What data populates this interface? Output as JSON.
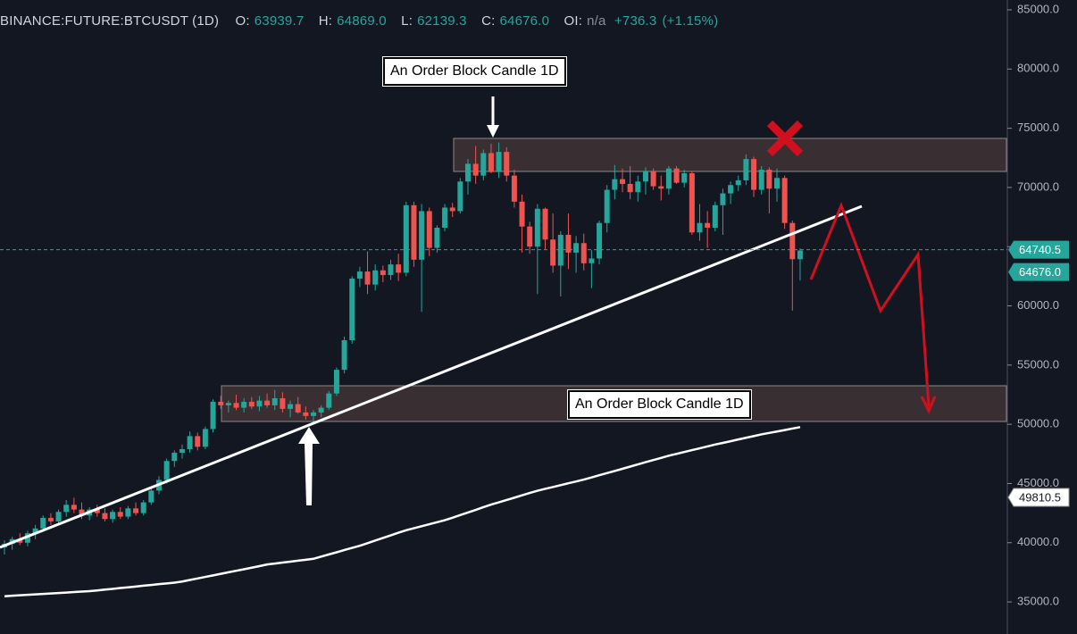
{
  "chart_data": {
    "type": "candlestick",
    "header": {
      "symbol": "BINANCE:FUTURE:BTCUSDT (1D)",
      "o_label": "O:",
      "o": "63939.7",
      "h_label": "H:",
      "h": "64869.0",
      "l_label": "L:",
      "l": "62139.3",
      "c_label": "C:",
      "c": "64676.0",
      "oi_label": "OI:",
      "oi": "n/a",
      "change": "+736.3",
      "change_pct": "(+1.15%)"
    },
    "annotations": [
      "An Order Block Candle 1D",
      "An Order Block Candle 1D"
    ],
    "up_color": "#26a69a",
    "down_color": "#ef5350",
    "open": [
      39600,
      39900,
      40300,
      40000,
      40800,
      41200,
      42100,
      41800,
      42600,
      43200,
      42800,
      42300,
      42800,
      42500,
      42000,
      42600,
      42200,
      42900,
      42500,
      43400,
      44400,
      45300,
      46900,
      47600,
      47900,
      49000,
      48100,
      49600,
      51900,
      51600,
      51800,
      51400,
      51900,
      51500,
      52000,
      51600,
      52200,
      51300,
      51700,
      51000,
      50700,
      51000,
      51400,
      52600,
      54600,
      57100,
      62300,
      62900,
      61800,
      63000,
      62600,
      63500,
      62800,
      68500,
      63900,
      68000,
      64900,
      66600,
      68300,
      68000,
      70500,
      72000,
      71000,
      72900,
      71300,
      73000,
      71000,
      68800,
      66700,
      65000,
      68200,
      65600,
      63400,
      66000,
      64500,
      65300,
      63600,
      64000,
      67000,
      69800,
      70700,
      70300,
      69600,
      70500,
      71400,
      70100,
      69900,
      71600,
      70400,
      71200,
      66200,
      67000,
      66600,
      68500,
      69500,
      70200,
      70600,
      72400,
      69800,
      71500,
      69900,
      70800,
      67000,
      63939.7
    ],
    "high": [
      40200,
      40500,
      40800,
      41000,
      41500,
      42300,
      42500,
      42800,
      43600,
      43800,
      43400,
      43000,
      43200,
      42900,
      42800,
      43000,
      43100,
      43400,
      43600,
      44600,
      45600,
      47100,
      47800,
      48300,
      49400,
      49300,
      49800,
      52100,
      52400,
      52000,
      52500,
      52200,
      52300,
      52400,
      52600,
      52900,
      52700,
      52000,
      52300,
      51500,
      51200,
      51600,
      52800,
      54800,
      57400,
      62500,
      63300,
      64600,
      63500,
      63400,
      63900,
      64400,
      68800,
      68800,
      68600,
      68300,
      66800,
      68600,
      68700,
      70800,
      72400,
      73500,
      73200,
      73700,
      73800,
      73400,
      71500,
      69400,
      67100,
      68600,
      68300,
      67800,
      66300,
      67800,
      65900,
      66100,
      64700,
      67200,
      70200,
      71900,
      71600,
      71800,
      71000,
      71700,
      71600,
      71000,
      71800,
      71800,
      71500,
      71400,
      68600,
      68000,
      68800,
      69900,
      70500,
      71000,
      72800,
      72600,
      71800,
      71700,
      71600,
      71000,
      67200,
      64869.0
    ],
    "low": [
      39000,
      39400,
      39800,
      39700,
      40300,
      41000,
      41500,
      41600,
      42200,
      42500,
      42000,
      41900,
      42200,
      41800,
      41700,
      42000,
      42000,
      42300,
      42300,
      43200,
      44100,
      45000,
      46400,
      47100,
      47600,
      47800,
      47900,
      49300,
      51300,
      51000,
      51200,
      51000,
      51300,
      51100,
      51400,
      51200,
      51000,
      50600,
      50900,
      50400,
      50200,
      50600,
      51200,
      52400,
      54300,
      56800,
      61600,
      61000,
      61300,
      62000,
      62200,
      62100,
      62500,
      63300,
      59500,
      64200,
      64500,
      66300,
      67500,
      67800,
      69400,
      70300,
      70600,
      71200,
      70800,
      70500,
      68300,
      64500,
      64400,
      61000,
      64800,
      62800,
      60800,
      63100,
      62800,
      63000,
      61500,
      63500,
      66200,
      69000,
      69600,
      69000,
      68800,
      69400,
      69800,
      68900,
      69400,
      70300,
      70000,
      66000,
      65500,
      64900,
      66300,
      66000,
      68600,
      69700,
      70200,
      69200,
      69400,
      67800,
      68800,
      66500,
      59600,
      62139.3
    ],
    "close": [
      39900,
      40300,
      40000,
      40800,
      41200,
      42100,
      41800,
      42600,
      43200,
      42800,
      42300,
      42800,
      42500,
      42000,
      42600,
      42200,
      42900,
      42500,
      43400,
      44400,
      45300,
      46900,
      47600,
      47900,
      49000,
      48100,
      49600,
      51900,
      51600,
      51800,
      51400,
      51900,
      51500,
      52000,
      51600,
      52200,
      51300,
      51700,
      51000,
      50700,
      51000,
      51400,
      52600,
      54600,
      57100,
      62300,
      62900,
      61800,
      63000,
      62600,
      63500,
      62800,
      68500,
      63900,
      68000,
      64900,
      66600,
      68300,
      68000,
      70500,
      72000,
      71000,
      72900,
      71300,
      73000,
      71000,
      68800,
      66700,
      65000,
      68200,
      65600,
      63400,
      66000,
      64500,
      65300,
      63600,
      64000,
      67000,
      69800,
      70700,
      70300,
      69600,
      70500,
      71400,
      70100,
      69900,
      71600,
      70400,
      71200,
      66200,
      67000,
      66600,
      68500,
      69500,
      70200,
      70600,
      72400,
      69800,
      71500,
      69900,
      70800,
      67000,
      63939.7,
      64676.0
    ],
    "ma": {
      "color": "#ffffff",
      "values": [
        35480,
        35520,
        35560,
        35600,
        35640,
        35670,
        35710,
        35750,
        35790,
        35830,
        35870,
        35910,
        35970,
        36040,
        36100,
        36170,
        36230,
        36300,
        36370,
        36430,
        36500,
        36560,
        36630,
        36720,
        36850,
        36980,
        37110,
        37240,
        37370,
        37500,
        37630,
        37760,
        37890,
        38020,
        38160,
        38240,
        38320,
        38400,
        38480,
        38560,
        38640,
        38830,
        39010,
        39190,
        39380,
        39560,
        39740,
        39960,
        40180,
        40400,
        40620,
        40840,
        41050,
        41220,
        41390,
        41560,
        41730,
        41900,
        42110,
        42330,
        42550,
        42770,
        43000,
        43220,
        43410,
        43610,
        43800,
        44000,
        44200,
        44390,
        44550,
        44700,
        44860,
        45020,
        45170,
        45330,
        45510,
        45700,
        45880,
        46060,
        46240,
        46430,
        46610,
        46800,
        46980,
        47160,
        47350,
        47500,
        47660,
        47820,
        47970,
        48130,
        48290,
        48430,
        48570,
        48720,
        48860,
        49000,
        49150,
        49270,
        49390,
        49510,
        49640,
        49760
      ]
    },
    "price_tags": [
      {
        "value": 64740.5,
        "label": "64740.5"
      },
      {
        "value": 64676.0,
        "label": "64676.0"
      },
      {
        "value": 49810.5,
        "label": "49810.5"
      }
    ],
    "ylim": [
      32290,
      85830
    ],
    "yticks": [
      {
        "value": 35000,
        "label": "35000.0"
      },
      {
        "value": 40000,
        "label": "40000.0"
      },
      {
        "value": 45000,
        "label": "45000.0"
      },
      {
        "value": 50000,
        "label": "50000.0"
      },
      {
        "value": 55000,
        "label": "55000.0"
      },
      {
        "value": 60000,
        "label": "60000.0"
      },
      {
        "value": 65000,
        "label": "65000.0"
      },
      {
        "value": 70000,
        "label": "70000.0"
      },
      {
        "value": 75000,
        "label": "75000.0"
      },
      {
        "value": 80000,
        "label": "80000.0"
      },
      {
        "value": 85000,
        "label": "85000.0"
      }
    ]
  }
}
